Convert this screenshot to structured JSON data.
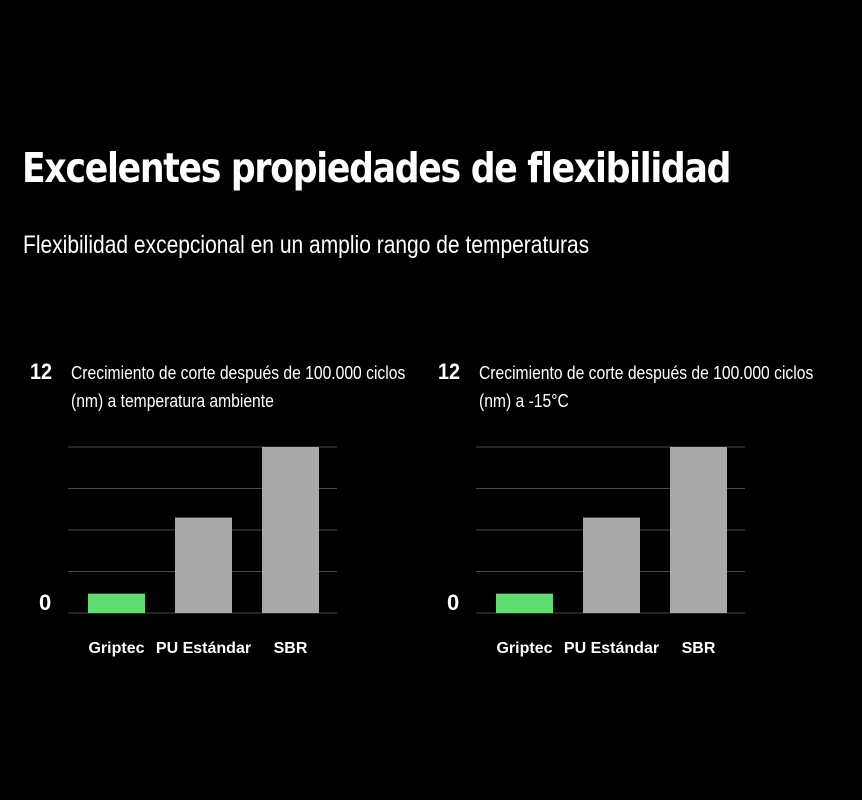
{
  "header": {
    "title": "Excelentes propiedades de flexibilidad",
    "subtitle": "Flexibilidad excepcional en un amplio rango de temperaturas"
  },
  "colors": {
    "background": "#000000",
    "highlight_bar": "#5fdc72",
    "neutral_bar": "#a9a9a9",
    "gridline": "#4a4a4a",
    "text": "#ffffff"
  },
  "chart_data": [
    {
      "type": "bar",
      "title": "Crecimiento de corte después de 100.000 ciclos (nm) a temperatura ambiente",
      "xlabel": "",
      "ylabel": "",
      "y_tick_labels": [
        "12",
        "0"
      ],
      "ylim": [
        0,
        12
      ],
      "grid": true,
      "categories": [
        "Griptec",
        "PU Estándar",
        "SBR"
      ],
      "values": [
        1.4,
        6.9,
        12
      ],
      "bar_colors": [
        "#5fdc72",
        "#a9a9a9",
        "#a9a9a9"
      ]
    },
    {
      "type": "bar",
      "title": "Crecimiento de corte después de 100.000 ciclos (nm) a -15°C",
      "xlabel": "",
      "ylabel": "",
      "y_tick_labels": [
        "12",
        "0"
      ],
      "ylim": [
        0,
        12
      ],
      "grid": true,
      "categories": [
        "Griptec",
        "PU Estándar",
        "SBR"
      ],
      "values": [
        1.4,
        6.9,
        12
      ],
      "bar_colors": [
        "#5fdc72",
        "#a9a9a9",
        "#a9a9a9"
      ]
    }
  ]
}
